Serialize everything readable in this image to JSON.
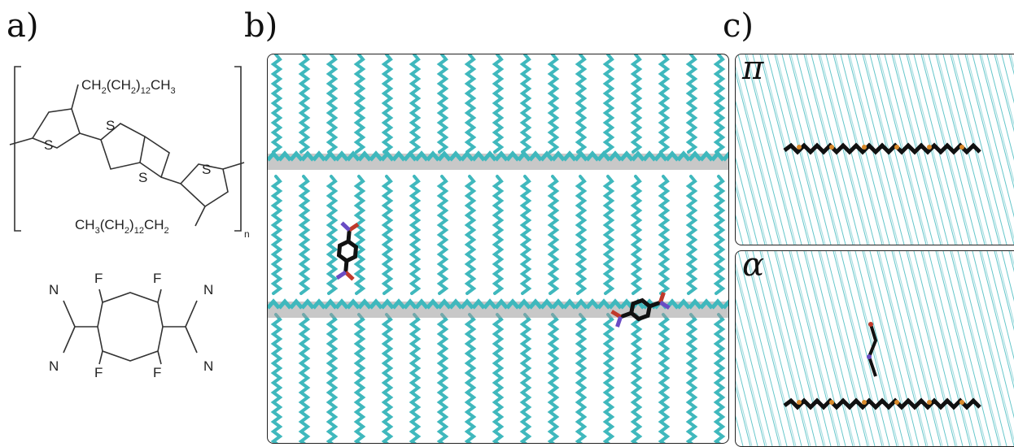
{
  "panels": {
    "a": {
      "label": "a)"
    },
    "b": {
      "label": "b)"
    },
    "c": {
      "label": "c)",
      "top_phase": "π",
      "bottom_phase": "α"
    }
  },
  "polymer": {
    "side_chain_top": [
      "CH",
      "2",
      "(CH",
      "2",
      ")",
      "12",
      "CH",
      "3"
    ],
    "side_chain_bottom": [
      "CH",
      "3",
      "(CH",
      "2",
      ")",
      "12",
      "CH",
      "2"
    ],
    "sulfur": "S",
    "repeat_subscript": "n"
  },
  "dopant": {
    "fluorine": "F",
    "nitrogen": "N"
  },
  "colors": {
    "polymer_teal": "#3fb8bd",
    "backbone_gray": "#9a9a9a",
    "dopant_black": "#111111",
    "oxygen_red": "#c0392b",
    "nitrogen_purple": "#6a4cc4",
    "sulfur_orange": "#d98a2b"
  }
}
